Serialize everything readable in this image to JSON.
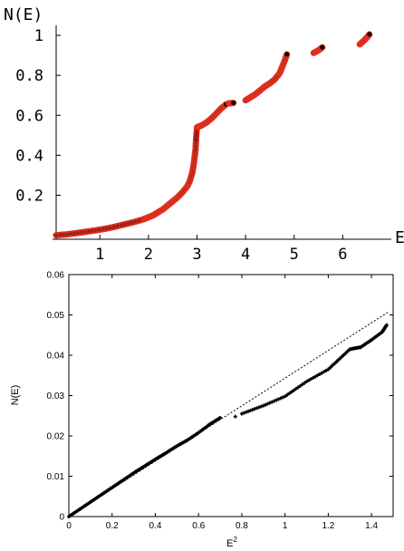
{
  "chart_data": [
    {
      "type": "scatter",
      "ylabel": "N(E)",
      "xlabel": "E",
      "xlim": [
        0.1,
        7.0
      ],
      "ylim": [
        -0.02,
        1.05
      ],
      "xticks": [
        1,
        2,
        3,
        4,
        5,
        6
      ],
      "yticks": [
        0.2,
        0.4,
        0.6,
        0.8,
        1
      ],
      "ytick_labels": [
        "0.2",
        "0.4",
        "0.6",
        "0.8",
        "1"
      ],
      "grid": false,
      "marker_fill": "#000000",
      "marker_edge": "#e03020",
      "series": [
        {
          "segments": [
            {
              "x": [
                0.1,
                0.3,
                0.5,
                0.7,
                0.9,
                1.1,
                1.3,
                1.5,
                1.7,
                1.9,
                2.0,
                2.1,
                2.2,
                2.3,
                2.4,
                2.5,
                2.6,
                2.7,
                2.8,
                2.85,
                2.9,
                2.93,
                2.95,
                2.97,
                2.98,
                3.0,
                3.05,
                3.1,
                3.2,
                3.3,
                3.4,
                3.5,
                3.6
              ],
              "y": [
                0.0,
                0.004,
                0.01,
                0.017,
                0.024,
                0.032,
                0.042,
                0.054,
                0.066,
                0.08,
                0.09,
                0.1,
                0.115,
                0.13,
                0.15,
                0.17,
                0.19,
                0.215,
                0.245,
                0.27,
                0.31,
                0.35,
                0.39,
                0.43,
                0.48,
                0.54,
                0.545,
                0.55,
                0.565,
                0.585,
                0.61,
                0.635,
                0.655
              ]
            },
            {
              "x": [
                3.65,
                3.75
              ],
              "y": [
                0.66,
                0.662
              ]
            },
            {
              "x": [
                4.0,
                4.1,
                4.2,
                4.3,
                4.4,
                4.5,
                4.6,
                4.7,
                4.75,
                4.8,
                4.85
              ],
              "y": [
                0.675,
                0.69,
                0.705,
                0.725,
                0.745,
                0.76,
                0.78,
                0.81,
                0.84,
                0.87,
                0.905
              ]
            },
            {
              "x": [
                5.4,
                5.5,
                5.58
              ],
              "y": [
                0.912,
                0.925,
                0.94
              ]
            },
            {
              "x": [
                6.35,
                6.42,
                6.5,
                6.55
              ],
              "y": [
                0.955,
                0.97,
                0.99,
                1.005
              ]
            }
          ]
        }
      ]
    },
    {
      "type": "scatter",
      "ylabel": "N(E)",
      "xlabel": "E",
      "xlabel_sup": "2",
      "xlim": [
        0,
        1.5
      ],
      "ylim": [
        0,
        0.06
      ],
      "xticks": [
        0,
        0.2,
        0.4,
        0.6,
        0.8,
        1,
        1.2,
        1.4
      ],
      "xtick_labels": [
        "0",
        "0.2",
        "0.4",
        "0.6",
        "0.8",
        "1",
        "1.2",
        "1.4"
      ],
      "yticks": [
        0,
        0.01,
        0.02,
        0.03,
        0.04,
        0.05,
        0.06
      ],
      "ytick_labels": [
        "0",
        "0.01",
        "0.02",
        "0.03",
        "0.04",
        "0.05",
        "0.06"
      ],
      "grid": false,
      "fit_line": {
        "x": [
          0,
          1.48
        ],
        "y": [
          0,
          0.0508
        ],
        "style": "dotted"
      },
      "series": [
        {
          "segments": [
            {
              "x": [
                0,
                0.05,
                0.1,
                0.15,
                0.2,
                0.25,
                0.3,
                0.35,
                0.4,
                0.45,
                0.5,
                0.55,
                0.6,
                0.65,
                0.7
              ],
              "y": [
                0,
                0.0018,
                0.0036,
                0.0054,
                0.0072,
                0.009,
                0.0108,
                0.0125,
                0.0142,
                0.0158,
                0.0175,
                0.019,
                0.0208,
                0.0228,
                0.0245
              ]
            },
            {
              "x": [
                0.77
              ],
              "y": [
                0.0248
              ]
            },
            {
              "x": [
                0.8,
                0.9,
                1.0,
                1.1,
                1.2,
                1.25,
                1.3,
                1.35,
                1.4,
                1.45,
                1.47
              ],
              "y": [
                0.0255,
                0.0275,
                0.0298,
                0.0335,
                0.0365,
                0.039,
                0.0415,
                0.042,
                0.0438,
                0.0458,
                0.0475
              ]
            }
          ]
        }
      ]
    }
  ]
}
